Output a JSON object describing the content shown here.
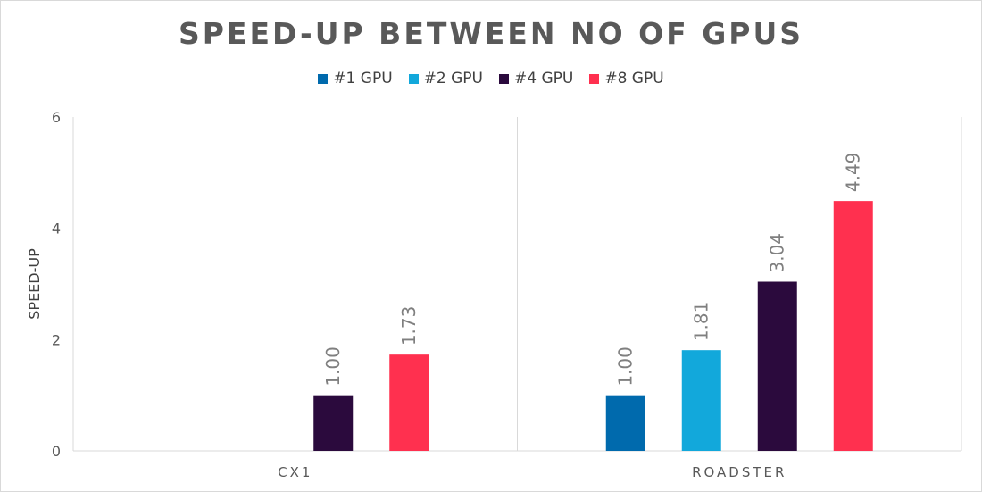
{
  "chart_data": {
    "type": "bar",
    "title": "SPEED-UP BETWEEN NO OF GPUS",
    "xlabel": "",
    "ylabel": "SPEED-UP",
    "ylim": [
      0,
      6
    ],
    "yticks": [
      0,
      2,
      4,
      6
    ],
    "categories": [
      "CX1",
      "ROADSTER"
    ],
    "legend_position": "top",
    "grid": false,
    "series": [
      {
        "name": "#1 GPU",
        "color": "#006AAD",
        "values": [
          null,
          1.0
        ],
        "labels": [
          "",
          "1.00"
        ]
      },
      {
        "name": "#2 GPU",
        "color": "#12A8DB",
        "values": [
          null,
          1.81
        ],
        "labels": [
          "",
          "1.81"
        ]
      },
      {
        "name": "#4 GPU",
        "color": "#2B0A3D",
        "values": [
          1.0,
          3.04
        ],
        "labels": [
          "1.00",
          "3.04"
        ]
      },
      {
        "name": "#8 GPU",
        "color": "#FF304F",
        "values": [
          1.73,
          4.49
        ],
        "labels": [
          "1.73",
          "4.49"
        ]
      }
    ]
  }
}
